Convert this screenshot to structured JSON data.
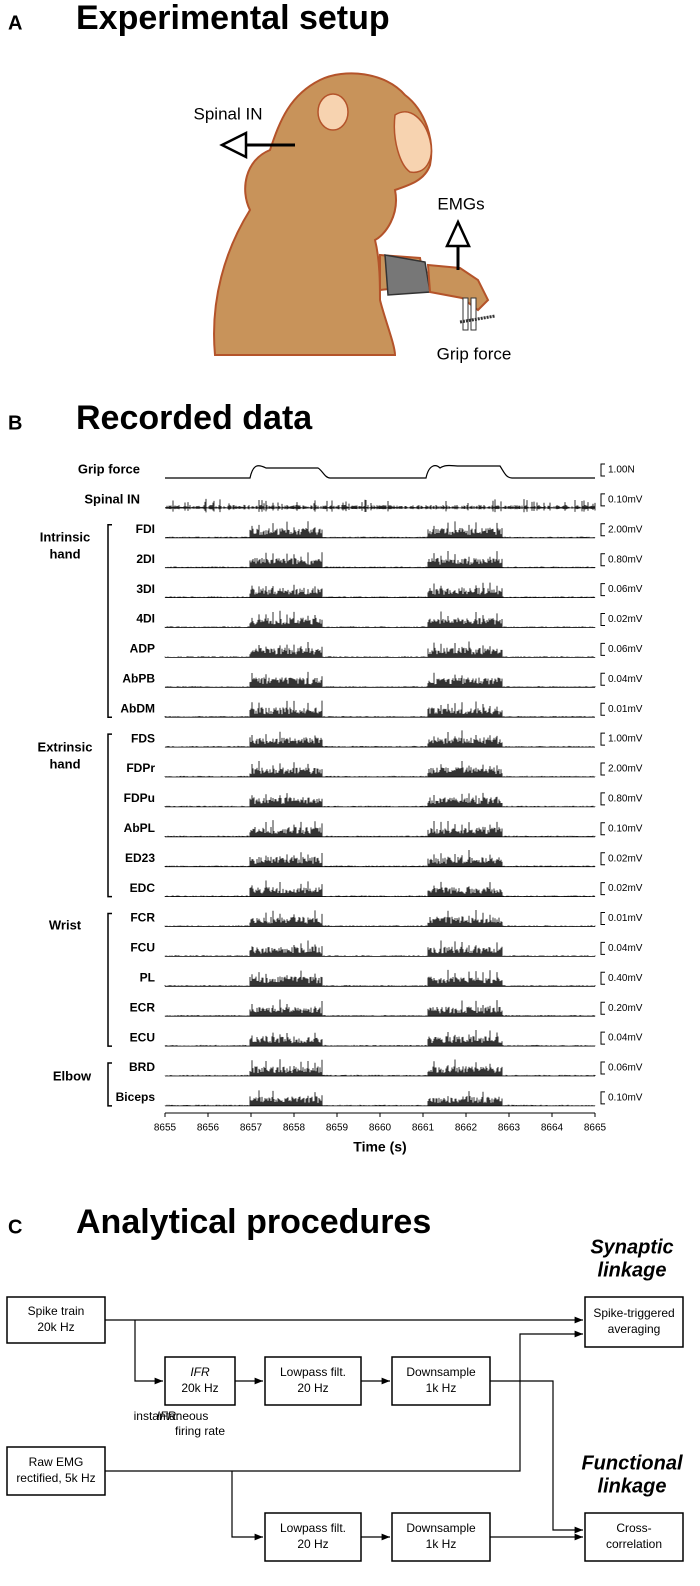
{
  "panel_a": {
    "label": "A",
    "title": "Experimental setup",
    "labels": [
      "Spinal IN",
      "EMGs",
      "Grip force"
    ]
  },
  "panel_b": {
    "label": "B",
    "title": "Recorded data",
    "traces": [
      {
        "name": "Grip force",
        "scale": "1.00N"
      },
      {
        "name": "Spinal IN",
        "scale": "0.10mV"
      },
      {
        "name": "FDI",
        "scale": "2.00mV"
      },
      {
        "name": "2DI",
        "scale": "0.80mV"
      },
      {
        "name": "3DI",
        "scale": "0.06mV"
      },
      {
        "name": "4DI",
        "scale": "0.02mV"
      },
      {
        "name": "ADP",
        "scale": "0.06mV"
      },
      {
        "name": "AbPB",
        "scale": "0.04mV"
      },
      {
        "name": "AbDM",
        "scale": "0.01mV"
      },
      {
        "name": "FDS",
        "scale": "1.00mV"
      },
      {
        "name": "FDPr",
        "scale": "2.00mV"
      },
      {
        "name": "FDPu",
        "scale": "0.80mV"
      },
      {
        "name": "AbPL",
        "scale": "0.10mV"
      },
      {
        "name": "ED23",
        "scale": "0.02mV"
      },
      {
        "name": "EDC",
        "scale": "0.02mV"
      },
      {
        "name": "FCR",
        "scale": "0.01mV"
      },
      {
        "name": "FCU",
        "scale": "0.04mV"
      },
      {
        "name": "PL",
        "scale": "0.40mV"
      },
      {
        "name": "ECR",
        "scale": "0.20mV"
      },
      {
        "name": "ECU",
        "scale": "0.04mV"
      },
      {
        "name": "BRD",
        "scale": "0.06mV"
      },
      {
        "name": "Biceps",
        "scale": "0.10mV"
      }
    ],
    "groups": [
      {
        "lines": [
          "Intrinsic",
          "hand"
        ]
      },
      {
        "lines": [
          "Extrinsic",
          "hand"
        ]
      },
      {
        "lines": [
          "Wrist"
        ]
      },
      {
        "lines": [
          "Elbow"
        ]
      }
    ],
    "xlim": [
      8655,
      8665
    ],
    "xticks": [
      8655,
      8656,
      8657,
      8658,
      8659,
      8660,
      8661,
      8662,
      8663,
      8664,
      8665
    ],
    "xlabel": "Time (s)"
  },
  "panel_c": {
    "label": "C",
    "title": "Analytical procedures",
    "nodes": [
      {
        "lines": [
          "Spike train",
          "20k Hz"
        ]
      },
      {
        "lines": [
          "Spike-triggered",
          "averaging"
        ]
      },
      {
        "lines": [
          "IFR",
          "20k Hz"
        ]
      },
      {
        "lines": [
          "Lowpass filt.",
          "20 Hz"
        ]
      },
      {
        "lines": [
          "Downsample",
          "1k Hz"
        ]
      },
      {
        "lines": [
          "Raw EMG",
          "rectified, 5k Hz"
        ]
      },
      {
        "lines": [
          "Lowpass filt.",
          "20 Hz"
        ]
      },
      {
        "lines": [
          "Downsample",
          "1k Hz"
        ]
      },
      {
        "lines": [
          "Cross-",
          "correlation"
        ]
      }
    ],
    "note": {
      "term": "IFR:",
      "lines": [
        "instantaneous",
        "firing rate"
      ]
    },
    "linkages": [
      {
        "lines": [
          "Synaptic",
          "linkage"
        ],
        "color": "#d9432b"
      },
      {
        "lines": [
          "Functional",
          "linkage"
        ],
        "color": "#2a7bbf"
      }
    ]
  }
}
